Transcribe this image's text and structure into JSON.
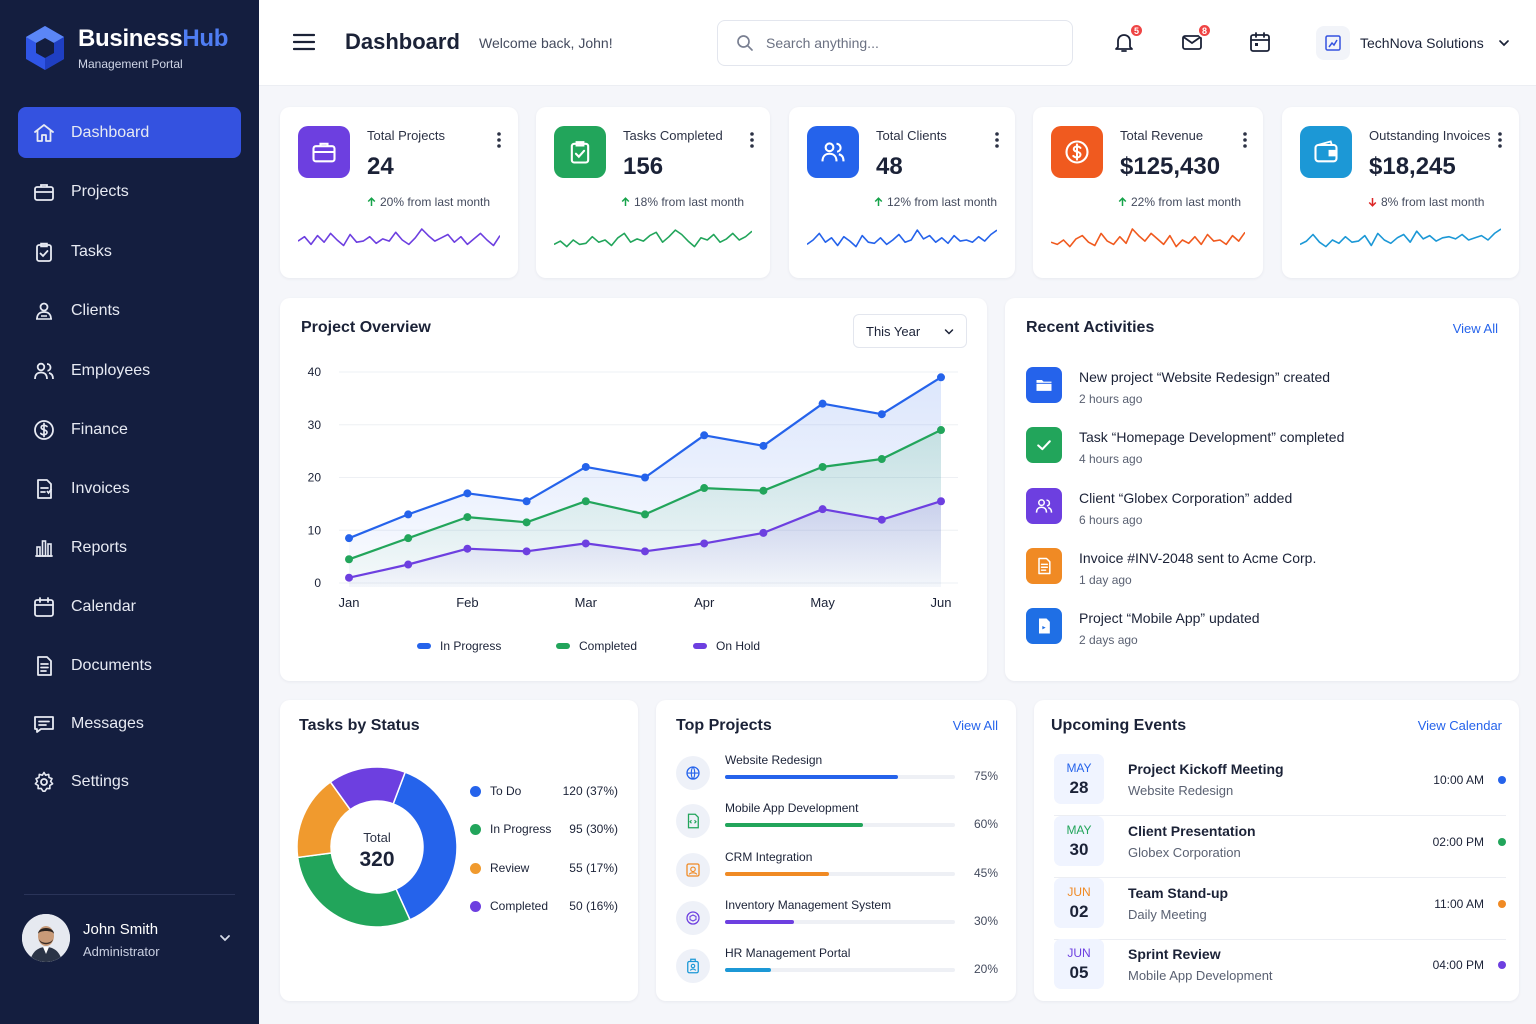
{
  "brand": {
    "name_main": "Business",
    "name_accent": "Hub",
    "subtitle": "Management Portal",
    "accent": "#4f7df3"
  },
  "sidebar": {
    "items": [
      {
        "label": "Dashboard",
        "icon": "home-icon",
        "active": true
      },
      {
        "label": "Projects",
        "icon": "briefcase-icon"
      },
      {
        "label": "Tasks",
        "icon": "clipboard-check-icon"
      },
      {
        "label": "Clients",
        "icon": "user-group-icon"
      },
      {
        "label": "Employees",
        "icon": "users-icon"
      },
      {
        "label": "Finance",
        "icon": "dollar-circle-icon"
      },
      {
        "label": "Invoices",
        "icon": "invoice-icon"
      },
      {
        "label": "Reports",
        "icon": "bar-chart-icon"
      },
      {
        "label": "Calendar",
        "icon": "calendar-icon"
      },
      {
        "label": "Documents",
        "icon": "document-icon"
      },
      {
        "label": "Messages",
        "icon": "message-icon"
      },
      {
        "label": "Settings",
        "icon": "gear-icon"
      }
    ],
    "user": {
      "name": "John Smith",
      "role": "Administrator"
    }
  },
  "header": {
    "title": "Dashboard",
    "welcome": "Welcome back, John!",
    "search_placeholder": "Search anything...",
    "notifications_count": "5",
    "messages_count": "8",
    "company": "TechNova Solutions"
  },
  "stats": [
    {
      "label": "Total Projects",
      "value": "24",
      "change": "20% from last month",
      "direction": "up",
      "color": "#6d3fe0",
      "icon": "briefcase-icon"
    },
    {
      "label": "Tasks Completed",
      "value": "156",
      "change": "18% from last month",
      "direction": "up",
      "color": "#22a55b",
      "icon": "clipboard-check-icon"
    },
    {
      "label": "Total Clients",
      "value": "48",
      "change": "12% from last month",
      "direction": "up",
      "color": "#2563eb",
      "icon": "users-icon"
    },
    {
      "label": "Total Revenue",
      "value": "$125,430",
      "change": "22% from last month",
      "direction": "up",
      "color": "#f05a1f",
      "icon": "dollar-circle-icon"
    },
    {
      "label": "Outstanding Invoices",
      "value": "$18,245",
      "change": "8% from last month",
      "direction": "down",
      "color": "#1c98d6",
      "icon": "wallet-icon"
    }
  ],
  "overview": {
    "title": "Project Overview",
    "period": "This Year",
    "chart_data": {
      "type": "line",
      "x": [
        "Jan",
        "",
        "Feb",
        "",
        "Mar",
        "",
        "Apr",
        "",
        "May",
        "",
        "Jun"
      ],
      "categories": [
        "Jan",
        "Feb",
        "Mar",
        "Apr",
        "May",
        "Jun"
      ],
      "yticks": [
        0,
        10,
        20,
        30,
        40
      ],
      "ylim": [
        0,
        40
      ],
      "series": [
        {
          "name": "In Progress",
          "color": "#2563eb",
          "values": [
            8.5,
            13,
            17,
            15.5,
            22,
            20,
            28,
            26,
            34,
            32,
            39
          ]
        },
        {
          "name": "Completed",
          "color": "#22a55b",
          "values": [
            4.5,
            8.5,
            12.5,
            11.5,
            15.5,
            13,
            18,
            17.5,
            22,
            23.5,
            29
          ]
        },
        {
          "name": "On Hold",
          "color": "#6d3fe0",
          "values": [
            1,
            3.5,
            6.5,
            6,
            7.5,
            6,
            7.5,
            9.5,
            14,
            12,
            15.5
          ]
        }
      ],
      "grid": true,
      "legend": "bottom"
    }
  },
  "activities": {
    "title": "Recent Activities",
    "link": "View All",
    "items": [
      {
        "text": "New project “Website Redesign” created",
        "time": "2 hours ago",
        "color": "#2563eb",
        "icon": "folder-icon"
      },
      {
        "text": "Task “Homepage Development” completed",
        "time": "4 hours ago",
        "color": "#22a55b",
        "icon": "check-icon"
      },
      {
        "text": "Client “Globex Corporation” added",
        "time": "6 hours ago",
        "color": "#6d3fe0",
        "icon": "users-icon"
      },
      {
        "text": "Invoice #INV-2048 sent to Acme Corp.",
        "time": "1 day ago",
        "color": "#f08a24",
        "icon": "document-icon"
      },
      {
        "text": "Project “Mobile App” updated",
        "time": "2 days ago",
        "color": "#1f6fe5",
        "icon": "file-icon"
      }
    ]
  },
  "tasks_status": {
    "title": "Tasks by Status",
    "total_label": "Total",
    "total": "320",
    "items": [
      {
        "name": "To Do",
        "value": "120 (37%)",
        "count": 120,
        "color": "#2563eb"
      },
      {
        "name": "In Progress",
        "value": "95 (30%)",
        "count": 95,
        "color": "#22a55b"
      },
      {
        "name": "Review",
        "value": "55 (17%)",
        "count": 55,
        "color": "#f09a2e"
      },
      {
        "name": "Completed",
        "value": "50 (16%)",
        "count": 50,
        "color": "#6d3fe0"
      }
    ]
  },
  "top_projects": {
    "title": "Top Projects",
    "link": "View All",
    "items": [
      {
        "name": "Website Redesign",
        "pct": "75%",
        "progress": 0.75,
        "color": "#2563eb",
        "icon": "globe-icon"
      },
      {
        "name": "Mobile App Development",
        "pct": "60%",
        "progress": 0.6,
        "color": "#22a55b",
        "icon": "code-file-icon"
      },
      {
        "name": "CRM Integration",
        "pct": "45%",
        "progress": 0.45,
        "color": "#f08a24",
        "icon": "crm-icon"
      },
      {
        "name": "Inventory Management System",
        "pct": "30%",
        "progress": 0.3,
        "color": "#6d3fe0",
        "icon": "box-icon"
      },
      {
        "name": "HR Management Portal",
        "pct": "20%",
        "progress": 0.2,
        "color": "#1c98d6",
        "icon": "badge-icon"
      }
    ]
  },
  "events": {
    "title": "Upcoming Events",
    "link": "View Calendar",
    "items": [
      {
        "month": "MAY",
        "day": "28",
        "title": "Project Kickoff Meeting",
        "sub": "Website Redesign",
        "time": "10:00 AM",
        "color": "#2563eb"
      },
      {
        "month": "MAY",
        "day": "30",
        "title": "Client Presentation",
        "sub": "Globex Corporation",
        "time": "02:00 PM",
        "color": "#22a55b"
      },
      {
        "month": "JUN",
        "day": "02",
        "title": "Team Stand-up",
        "sub": "Daily Meeting",
        "time": "11:00 AM",
        "color": "#f08a24"
      },
      {
        "month": "JUN",
        "day": "05",
        "title": "Sprint Review",
        "sub": "Mobile App Development",
        "time": "04:00 PM",
        "color": "#6d3fe0"
      }
    ]
  }
}
